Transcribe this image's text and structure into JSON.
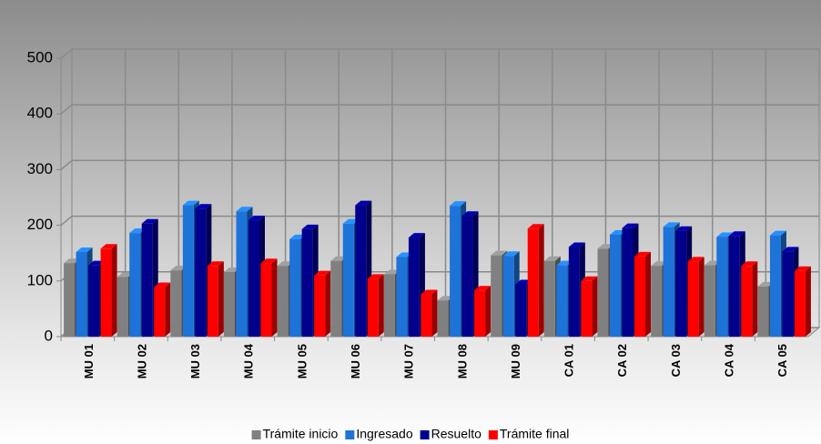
{
  "chart_data": {
    "type": "bar3d",
    "categories": [
      "MU 01",
      "MU 02",
      "MU 03",
      "MU 04",
      "MU 05",
      "MU 06",
      "MU 07",
      "MU 08",
      "MU 09",
      "CA 01",
      "CA 02",
      "CA 03",
      "CA 04",
      "CA 05"
    ],
    "series": [
      {
        "name": "Trámite inicio",
        "color": "#808080",
        "values": [
          132,
          107,
          119,
          116,
          127,
          136,
          112,
          65,
          146,
          136,
          158,
          127,
          128,
          90
        ]
      },
      {
        "name": "Ingresado",
        "color": "#1e73d8",
        "values": [
          152,
          186,
          236,
          225,
          175,
          203,
          143,
          235,
          145,
          128,
          183,
          197,
          179,
          182
        ]
      },
      {
        "name": "Resuelto",
        "color": "#00008c",
        "values": [
          128,
          203,
          230,
          209,
          193,
          236,
          178,
          217,
          94,
          161,
          195,
          190,
          181,
          153
        ]
      },
      {
        "name": "Trámite final",
        "color": "#ff0000",
        "values": [
          158,
          89,
          127,
          132,
          110,
          104,
          76,
          83,
          194,
          100,
          144,
          135,
          127,
          118
        ]
      }
    ],
    "ylim": [
      0,
      500
    ],
    "yticks": [
      0,
      100,
      200,
      300,
      400,
      500
    ],
    "grid": true,
    "legend": "bottom"
  }
}
